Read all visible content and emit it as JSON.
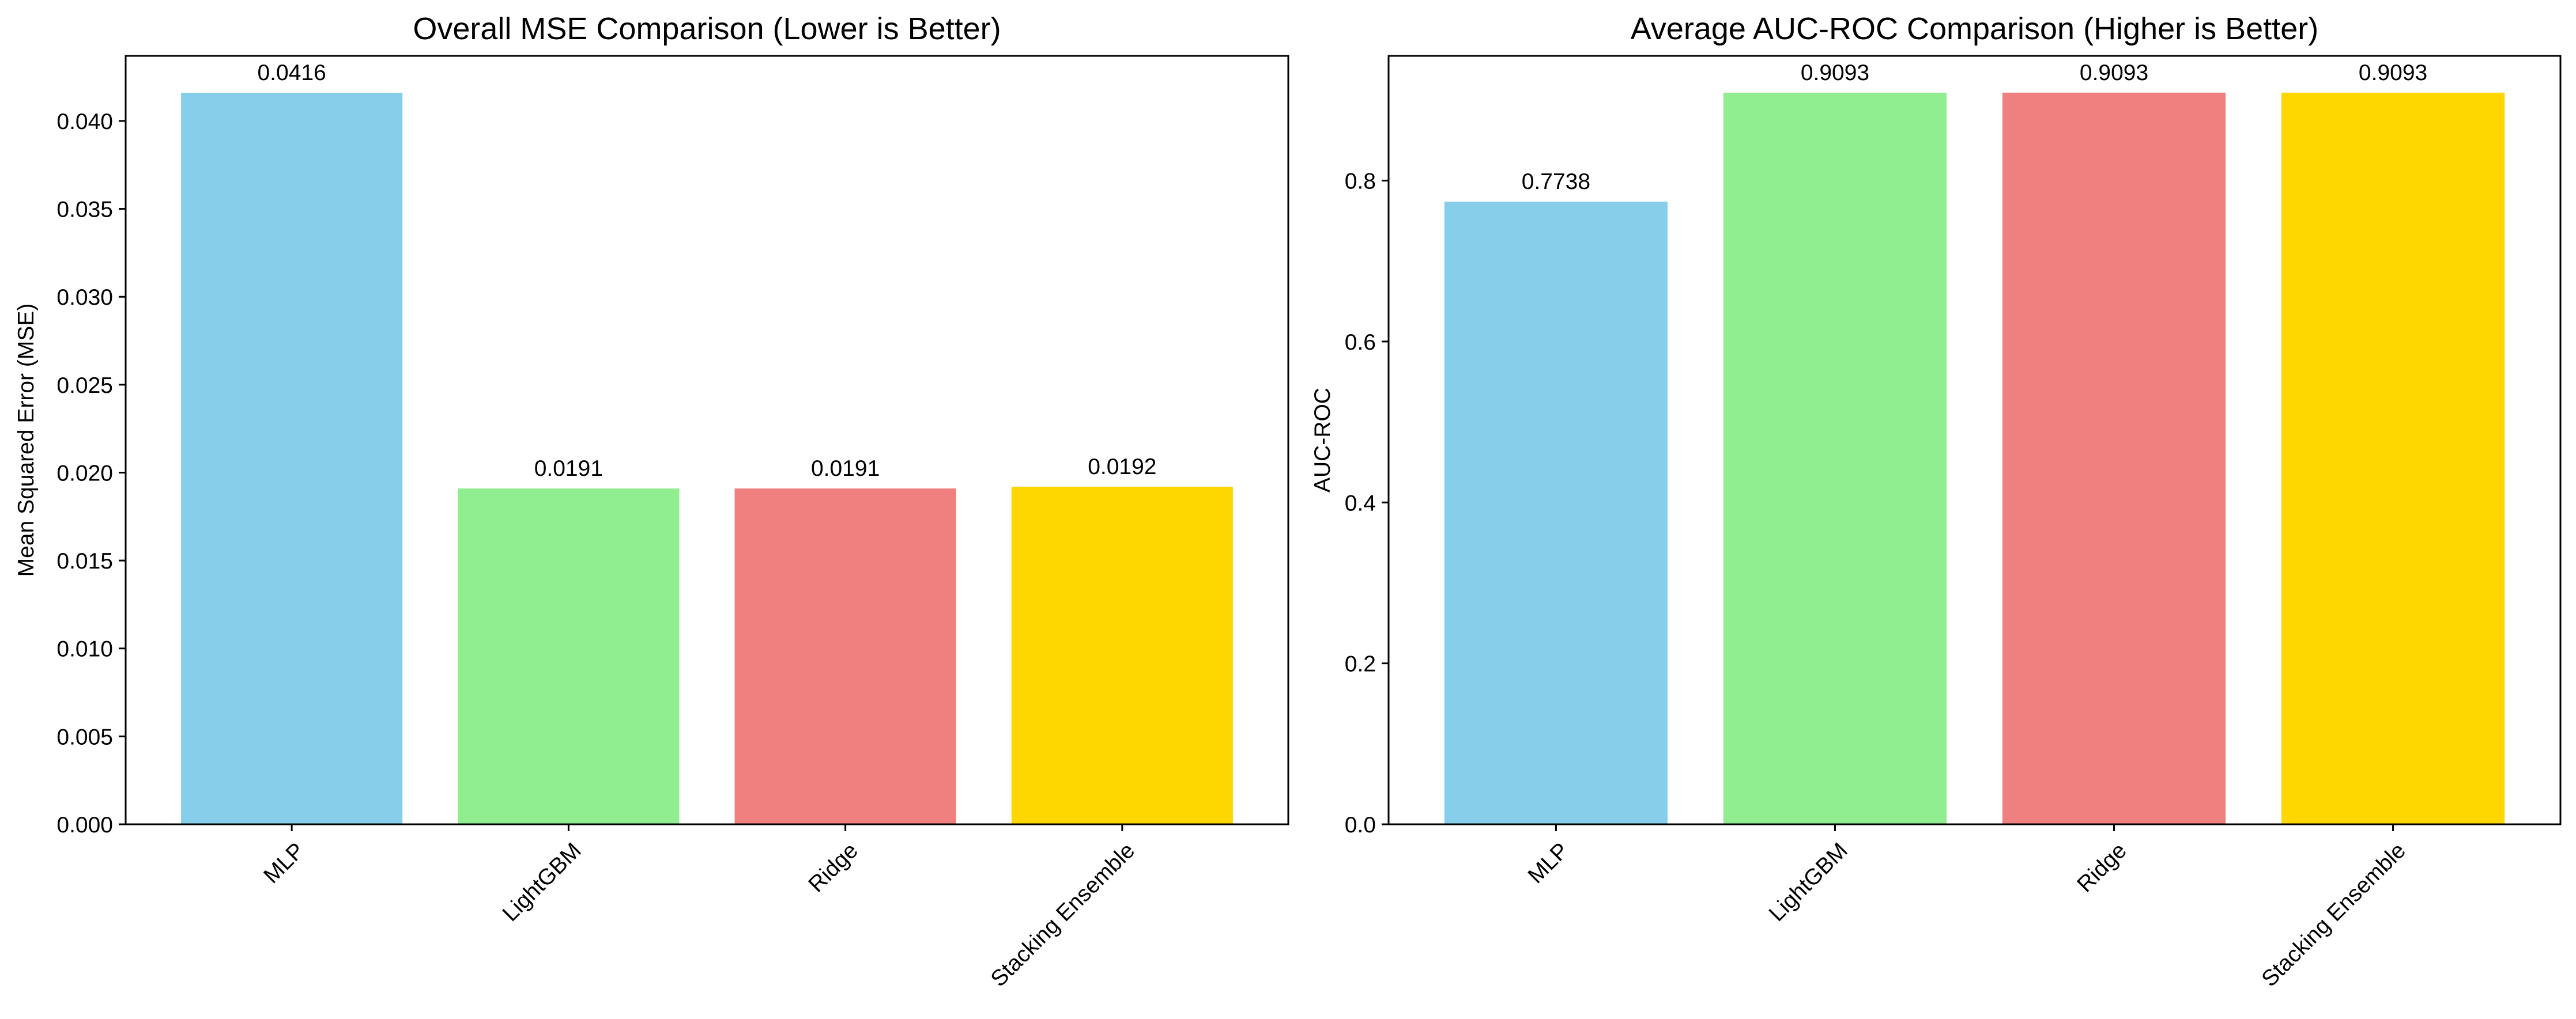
{
  "chart_data": [
    {
      "type": "bar",
      "title": "Overall MSE Comparison (Lower is Better)",
      "xlabel": "",
      "ylabel": "Mean Squared Error (MSE)",
      "categories": [
        "MLP",
        "LightGBM",
        "Ridge",
        "Stacking Ensemble"
      ],
      "values": [
        0.0416,
        0.0191,
        0.0191,
        0.0192
      ],
      "value_labels": [
        "0.0416",
        "0.0191",
        "0.0191",
        "0.0192"
      ],
      "colors": [
        "#87ceeb",
        "#90ee90",
        "#f08080",
        "#ffd700"
      ],
      "ylim": [
        0,
        0.0437
      ],
      "yticks": [
        0.0,
        0.005,
        0.01,
        0.015,
        0.02,
        0.025,
        0.03,
        0.035,
        0.04
      ],
      "ytick_labels": [
        "0.000",
        "0.005",
        "0.010",
        "0.015",
        "0.020",
        "0.025",
        "0.030",
        "0.035",
        "0.040"
      ],
      "grid": false,
      "xtick_rotation": 45
    },
    {
      "type": "bar",
      "title": "Average AUC-ROC Comparison (Higher is Better)",
      "xlabel": "",
      "ylabel": "AUC-ROC",
      "categories": [
        "MLP",
        "LightGBM",
        "Ridge",
        "Stacking Ensemble"
      ],
      "values": [
        0.7738,
        0.9093,
        0.9093,
        0.9093
      ],
      "value_labels": [
        "0.7738",
        "0.9093",
        "0.9093",
        "0.9093"
      ],
      "colors": [
        "#87ceeb",
        "#90ee90",
        "#f08080",
        "#ffd700"
      ],
      "ylim": [
        0,
        0.955
      ],
      "yticks": [
        0.0,
        0.2,
        0.4,
        0.6,
        0.8
      ],
      "ytick_labels": [
        "0.0",
        "0.2",
        "0.4",
        "0.6",
        "0.8"
      ],
      "grid": false,
      "xtick_rotation": 45
    }
  ]
}
